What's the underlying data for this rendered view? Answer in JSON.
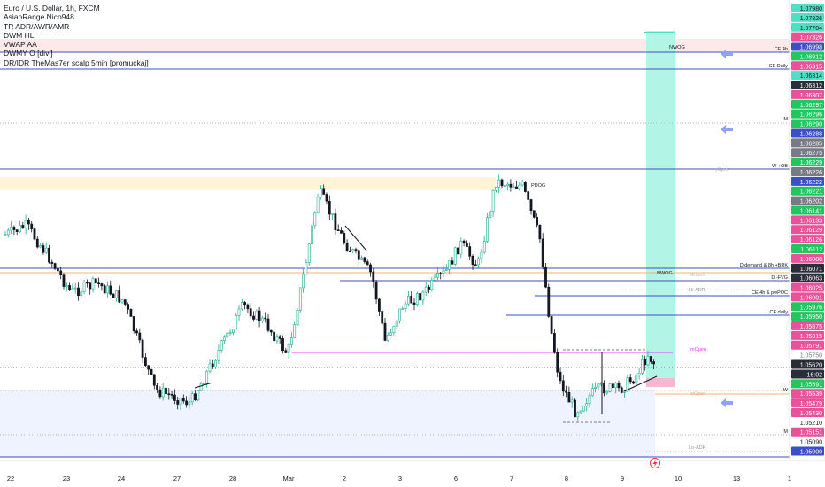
{
  "legend": {
    "title": "Euro / U.S. Dollar, 1h, FXCM",
    "indicators": [
      "AsianRange Nico948",
      "TR ADR/AWR/AMR",
      "DWM HL",
      "VWAP AA",
      "DWMY O [divi]",
      "DR/IDR TheMas7er scalp 5min [promuckaj]"
    ]
  },
  "chart_data": {
    "type": "candlestick",
    "symbol": "EUR/USD",
    "timeframe": "1h",
    "x_tick_labels": [
      "22",
      "23",
      "24",
      "27",
      "28",
      "Mar",
      "2",
      "3",
      "6",
      "7",
      "8",
      "9",
      "10",
      "13",
      "1"
    ],
    "price_scale": [
      {
        "v": "1.07980",
        "c": "#4fe0c4",
        "t": "#131722"
      },
      {
        "v": "1.07826",
        "c": "#4fe0c4",
        "t": "#131722"
      },
      {
        "v": "1.07704",
        "c": "#4fe0c4",
        "t": "#131722"
      },
      {
        "v": "1.07326",
        "c": "#e9529a",
        "t": "#ffffff"
      },
      {
        "v": "1.06998",
        "c": "#3d4fc4",
        "t": "#ffffff"
      },
      {
        "v": "1.06912",
        "c": "#22c55e",
        "t": "#ffffff"
      },
      {
        "v": "1.06315",
        "c": "#e9529a",
        "t": "#ffffff"
      },
      {
        "v": "1.06314",
        "c": "#4fe0c4",
        "t": "#131722"
      },
      {
        "v": "1.06312",
        "c": "#2a2e39",
        "t": "#ffffff"
      },
      {
        "v": "1.06307",
        "c": "#e9529a",
        "t": "#ffffff"
      },
      {
        "v": "1.06297",
        "c": "#22c55e",
        "t": "#ffffff"
      },
      {
        "v": "1.06296",
        "c": "#22c55e",
        "t": "#ffffff"
      },
      {
        "v": "1.06290",
        "c": "#22c55e",
        "t": "#ffffff"
      },
      {
        "v": "1.06288",
        "c": "#3d4fc4",
        "t": "#ffffff"
      },
      {
        "v": "1.06285",
        "c": "#787b86",
        "t": "#ffffff"
      },
      {
        "v": "1.06275",
        "c": "#787b86",
        "t": "#ffffff"
      },
      {
        "v": "1.06229",
        "c": "#22c55e",
        "t": "#ffffff"
      },
      {
        "v": "1.06226",
        "c": "#787b86",
        "t": "#ffffff"
      },
      {
        "v": "1.06222",
        "c": "#3d4fc4",
        "t": "#ffffff"
      },
      {
        "v": "1.06221",
        "c": "#22c55e",
        "t": "#ffffff"
      },
      {
        "v": "1.06202",
        "c": "#787b86",
        "t": "#ffffff"
      },
      {
        "v": "1.06141",
        "c": "#22c55e",
        "t": "#ffffff"
      },
      {
        "v": "1.06133",
        "c": "#e9529a",
        "t": "#ffffff"
      },
      {
        "v": "1.06129",
        "c": "#e9529a",
        "t": "#ffffff"
      },
      {
        "v": "1.06126",
        "c": "#e9529a",
        "t": "#ffffff"
      },
      {
        "v": "1.06112",
        "c": "#22c55e",
        "t": "#ffffff"
      },
      {
        "v": "1.06088",
        "c": "#e9529a",
        "t": "#ffffff"
      },
      {
        "v": "1.06071",
        "c": "#2a2e39",
        "t": "#ffffff"
      },
      {
        "v": "1.06063",
        "c": "#2a2e39",
        "t": "#ffffff"
      },
      {
        "v": "1.06025",
        "c": "#e9529a",
        "t": "#ffffff"
      },
      {
        "v": "1.06001",
        "c": "#e9529a",
        "t": "#ffffff"
      },
      {
        "v": "1.05976",
        "c": "#22c55e",
        "t": "#ffffff"
      },
      {
        "v": "1.05950",
        "c": "#22c55e",
        "t": "#ffffff"
      },
      {
        "v": "1.05875",
        "c": "#e9529a",
        "t": "#ffffff"
      },
      {
        "v": "1.05815",
        "c": "#e9529a",
        "t": "#ffffff"
      },
      {
        "v": "1.05791",
        "c": "#e9529a",
        "t": "#ffffff"
      },
      {
        "v": "1.05750",
        "c": "",
        "t": "#787b86"
      },
      {
        "v": "1.05620",
        "c": "#2a2e39",
        "t": "#ffffff"
      },
      {
        "v": "16:02",
        "c": "#2a2e39",
        "t": "#ffffff"
      },
      {
        "v": "1.05591",
        "c": "#22c55e",
        "t": "#ffffff"
      },
      {
        "v": "1.05539",
        "c": "#e9529a",
        "t": "#ffffff"
      },
      {
        "v": "1.05479",
        "c": "#e9529a",
        "t": "#ffffff"
      },
      {
        "v": "1.05430",
        "c": "#e9529a",
        "t": "#ffffff"
      },
      {
        "v": "1.05210",
        "c": "",
        "t": "#131722"
      },
      {
        "v": "1.05151",
        "c": "#e9529a",
        "t": "#ffffff"
      },
      {
        "v": "1.05090",
        "c": "",
        "t": "#131722"
      },
      {
        "v": "1.05000",
        "c": "#3d4fc4",
        "t": "#ffffff"
      }
    ],
    "level_labels": [
      "CE 4h",
      "NWOG",
      "CE Daily",
      "M",
      "W +OB",
      "PDOG",
      "D demand & 8h +BRK",
      "D -FVG",
      "NWOG",
      "CE 4h & pwPOC",
      "CE daily",
      "W",
      "M",
      "Hi-ADR",
      "Lo-ADR"
    ],
    "open_labels": [
      "yOpen",
      "wOpen",
      "mOpen",
      "dOpen"
    ],
    "colors": {
      "up": "#22ab94",
      "down": "#131722",
      "level_blue": "#3d4fc4",
      "magenta": "#e040fb",
      "teal": "#4fe0c4"
    }
  }
}
